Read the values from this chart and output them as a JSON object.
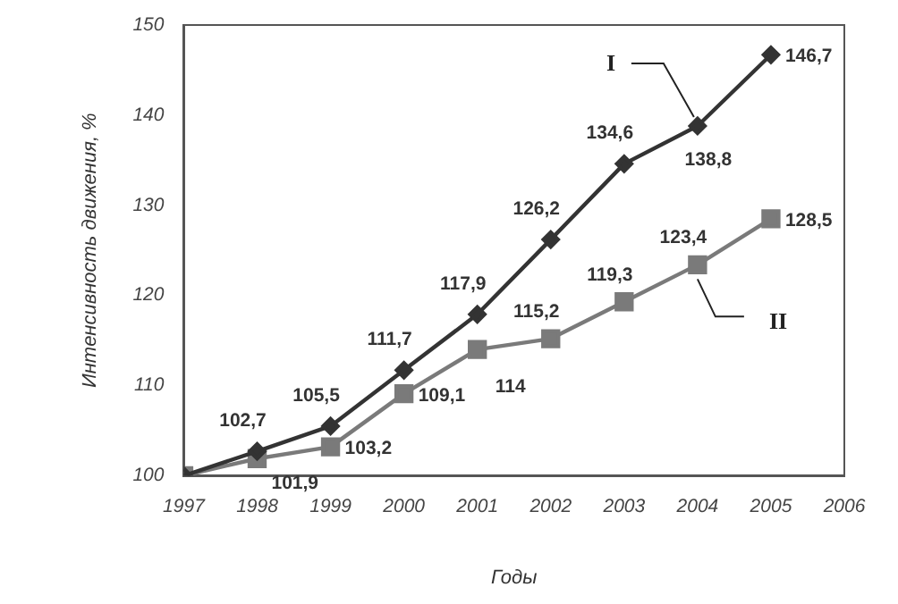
{
  "chart_data": {
    "type": "line",
    "xlabel": "Годы",
    "ylabel": "Интенсивность движения, %",
    "x": [
      1997,
      1998,
      1999,
      2000,
      2001,
      2002,
      2003,
      2004,
      2005
    ],
    "series": [
      {
        "name": "I",
        "color": "#333333",
        "marker": "diamond",
        "values": [
          100,
          102.7,
          105.5,
          111.7,
          117.9,
          126.2,
          134.6,
          138.8,
          146.7
        ],
        "value_labels": [
          null,
          "102,7",
          "105,5",
          "111,7",
          "117,9",
          "126,2",
          "134,6",
          "138,8",
          "146,7"
        ]
      },
      {
        "name": "II",
        "color": "#7a7a7a",
        "marker": "square",
        "values": [
          100,
          101.9,
          103.2,
          109.1,
          114,
          115.2,
          119.3,
          123.4,
          128.5
        ],
        "value_labels": [
          null,
          "101,9",
          "103,2",
          "109,1",
          "114",
          "115,2",
          "119,3",
          "123,4",
          "128,5"
        ]
      }
    ],
    "xlim": [
      1997,
      2006
    ],
    "xticks": [
      1997,
      1998,
      1999,
      2000,
      2001,
      2002,
      2003,
      2004,
      2005,
      2006
    ],
    "ylim": [
      100,
      150
    ],
    "yticks": [
      100,
      110,
      120,
      130,
      140,
      150
    ],
    "grid": false,
    "legend": false,
    "line_style": "solid"
  }
}
